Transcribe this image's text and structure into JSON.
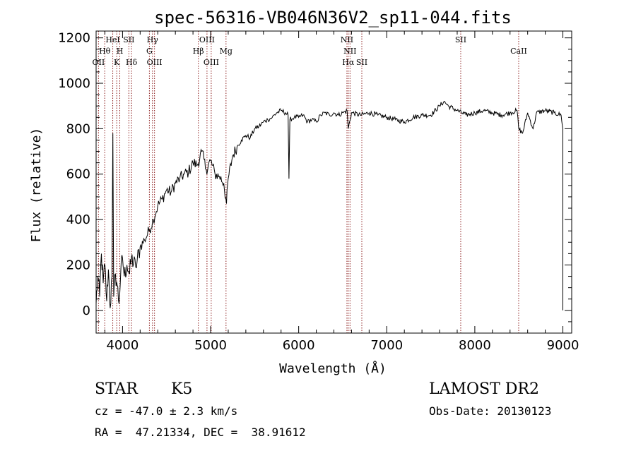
{
  "chart_data": {
    "type": "line",
    "title": "spec-56316-VB046N36V2_sp11-044.fits",
    "xlabel": "Wavelength (Å)",
    "ylabel": "Flux (relative)",
    "xlim": [
      3700,
      9100
    ],
    "ylim": [
      -100,
      1230
    ],
    "xticks": [
      4000,
      5000,
      6000,
      7000,
      8000,
      9000
    ],
    "yticks": [
      0,
      200,
      400,
      600,
      800,
      1000,
      1200
    ],
    "grid": false,
    "series": [
      {
        "color": "#000000",
        "points": [
          [
            3700,
            30
          ],
          [
            3720,
            150
          ],
          [
            3740,
            60
          ],
          [
            3760,
            250
          ],
          [
            3780,
            120
          ],
          [
            3800,
            200
          ],
          [
            3820,
            40
          ],
          [
            3840,
            180
          ],
          [
            3860,
            10
          ],
          [
            3880,
            150
          ],
          [
            3890,
            780
          ],
          [
            3900,
            60
          ],
          [
            3920,
            160
          ],
          [
            3940,
            110
          ],
          [
            3960,
            30
          ],
          [
            3980,
            170
          ],
          [
            4000,
            230
          ],
          [
            4020,
            150
          ],
          [
            4050,
            200
          ],
          [
            4080,
            160
          ],
          [
            4100,
            230
          ],
          [
            4150,
            190
          ],
          [
            4200,
            280
          ],
          [
            4250,
            310
          ],
          [
            4300,
            350
          ],
          [
            4350,
            400
          ],
          [
            4400,
            460
          ],
          [
            4450,
            490
          ],
          [
            4500,
            530
          ],
          [
            4550,
            520
          ],
          [
            4600,
            560
          ],
          [
            4650,
            580
          ],
          [
            4700,
            600
          ],
          [
            4750,
            610
          ],
          [
            4800,
            650
          ],
          [
            4850,
            640
          ],
          [
            4900,
            700
          ],
          [
            4950,
            620
          ],
          [
            5000,
            660
          ],
          [
            5050,
            600
          ],
          [
            5100,
            590
          ],
          [
            5150,
            560
          ],
          [
            5180,
            470
          ],
          [
            5200,
            580
          ],
          [
            5250,
            680
          ],
          [
            5300,
            720
          ],
          [
            5350,
            750
          ],
          [
            5400,
            770
          ],
          [
            5450,
            760
          ],
          [
            5500,
            800
          ],
          [
            5550,
            810
          ],
          [
            5600,
            830
          ],
          [
            5650,
            840
          ],
          [
            5700,
            850
          ],
          [
            5750,
            870
          ],
          [
            5800,
            880
          ],
          [
            5850,
            870
          ],
          [
            5880,
            860
          ],
          [
            5890,
            580
          ],
          [
            5900,
            840
          ],
          [
            5950,
            850
          ],
          [
            6000,
            850
          ],
          [
            6050,
            860
          ],
          [
            6100,
            830
          ],
          [
            6150,
            840
          ],
          [
            6200,
            830
          ],
          [
            6250,
            860
          ],
          [
            6300,
            870
          ],
          [
            6350,
            860
          ],
          [
            6400,
            870
          ],
          [
            6450,
            860
          ],
          [
            6500,
            870
          ],
          [
            6550,
            880
          ],
          [
            6563,
            800
          ],
          [
            6600,
            870
          ],
          [
            6700,
            860
          ],
          [
            6800,
            870
          ],
          [
            6900,
            860
          ],
          [
            7000,
            850
          ],
          [
            7100,
            840
          ],
          [
            7200,
            830
          ],
          [
            7300,
            850
          ],
          [
            7400,
            860
          ],
          [
            7500,
            860
          ],
          [
            7600,
            900
          ],
          [
            7650,
            920
          ],
          [
            7700,
            900
          ],
          [
            7800,
            880
          ],
          [
            7900,
            860
          ],
          [
            8000,
            870
          ],
          [
            8100,
            880
          ],
          [
            8200,
            870
          ],
          [
            8300,
            860
          ],
          [
            8400,
            870
          ],
          [
            8480,
            880
          ],
          [
            8498,
            800
          ],
          [
            8542,
            780
          ],
          [
            8600,
            870
          ],
          [
            8662,
            800
          ],
          [
            8700,
            870
          ],
          [
            8800,
            880
          ],
          [
            8900,
            870
          ],
          [
            8980,
            860
          ],
          [
            9000,
            800
          ],
          [
            9000,
            300
          ],
          [
            9000,
            0
          ]
        ]
      }
    ],
    "lines": [
      {
        "x": 3727,
        "rows": [
          {
            "row": 3,
            "label": "OII"
          }
        ]
      },
      {
        "x": 3798,
        "rows": [
          {
            "row": 2,
            "label": "Hθ"
          }
        ]
      },
      {
        "x": 3889,
        "rows": [
          {
            "row": 1,
            "label": "HeI"
          }
        ]
      },
      {
        "x": 3934,
        "rows": [
          {
            "row": 3,
            "label": "K"
          }
        ]
      },
      {
        "x": 3969,
        "rows": [
          {
            "row": 2,
            "label": "H"
          }
        ]
      },
      {
        "x": 4072,
        "rows": [
          {
            "row": 1,
            "label": "SII"
          }
        ]
      },
      {
        "x": 4102,
        "rows": [
          {
            "row": 3,
            "label": "Hδ"
          }
        ]
      },
      {
        "x": 4305,
        "rows": [
          {
            "row": 2,
            "label": "G"
          }
        ]
      },
      {
        "x": 4340,
        "rows": [
          {
            "row": 1,
            "label": "Hγ"
          }
        ]
      },
      {
        "x": 4363,
        "rows": [
          {
            "row": 3,
            "label": "OIII"
          }
        ]
      },
      {
        "x": 4861,
        "rows": [
          {
            "row": 2,
            "label": "Hβ"
          }
        ]
      },
      {
        "x": 4959,
        "rows": [
          {
            "row": 1,
            "label": "OIII"
          }
        ]
      },
      {
        "x": 5007,
        "rows": [
          {
            "row": 3,
            "label": "OIII"
          }
        ]
      },
      {
        "x": 5175,
        "rows": [
          {
            "row": 2,
            "label": "Mg"
          }
        ]
      },
      {
        "x": 6548,
        "rows": [
          {
            "row": 1,
            "label": "NII"
          }
        ]
      },
      {
        "x": 6563,
        "rows": [
          {
            "row": 3,
            "label": "Hα"
          }
        ]
      },
      {
        "x": 6583,
        "rows": [
          {
            "row": 2,
            "label": "NII"
          }
        ]
      },
      {
        "x": 6717,
        "rows": [
          {
            "row": 3,
            "label": "SII"
          }
        ]
      },
      {
        "x": 7840,
        "rows": [
          {
            "row": 1,
            "label": "SII"
          }
        ]
      },
      {
        "x": 8498,
        "rows": [
          {
            "row": 2,
            "label": "CaII"
          }
        ]
      }
    ],
    "line_color": "#8b1a1a"
  },
  "info": {
    "object_class": "STAR",
    "subclass": "K5",
    "survey": "LAMOST DR2",
    "cz": "cz = -47.0 ± 2.3 km/s",
    "obs_date": "Obs-Date: 20130123",
    "coords": "RA =  47.21334, DEC =  38.91612"
  }
}
